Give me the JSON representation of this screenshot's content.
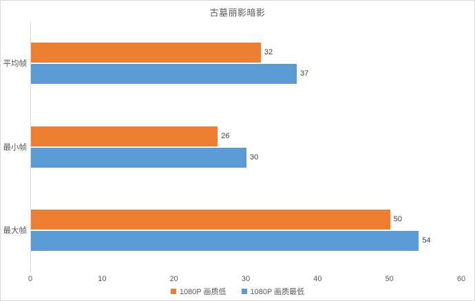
{
  "chart_data": {
    "type": "bar",
    "orientation": "horizontal",
    "title": "古墓丽影暗影",
    "categories": [
      "平均帧",
      "最小帧",
      "最大帧"
    ],
    "series": [
      {
        "name": "1080P 画质低",
        "color": "#ED7D31",
        "values": [
          32,
          26,
          50
        ]
      },
      {
        "name": "1080P 画质最低",
        "color": "#5B9BD5",
        "values": [
          37,
          30,
          54
        ]
      }
    ],
    "xlabel": "",
    "ylabel": "",
    "xlim": [
      0,
      60
    ],
    "x_ticks": [
      0,
      10,
      20,
      30,
      40,
      50,
      60
    ],
    "grid": false,
    "data_labels": true,
    "legend_position": "bottom"
  },
  "colors": {
    "background": "#FFFFFF",
    "chart_border": "#D9D9D9",
    "axis_line": "#D9D9D9",
    "axis_text": "#595959",
    "data_label_text": "#404040",
    "series1": "#ED7D31",
    "series2": "#5B9BD5"
  }
}
